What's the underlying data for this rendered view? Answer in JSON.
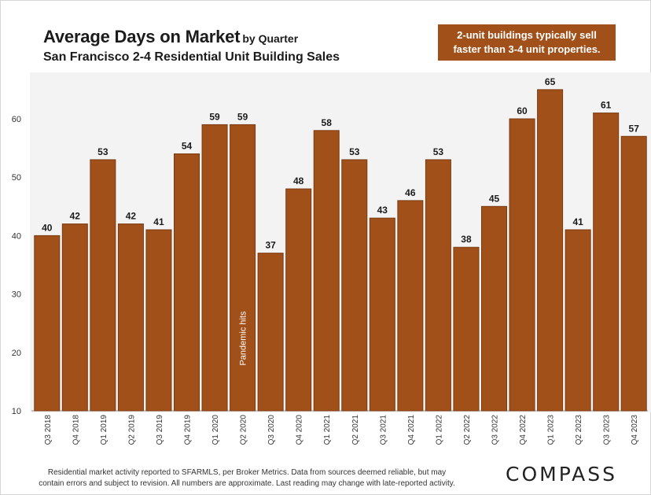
{
  "title": {
    "main": "Average Days on Market",
    "suffix": "by Quarter",
    "subtitle": "San Francisco 2-4 Residential Unit Building Sales"
  },
  "callout": "2-unit buildings typically sell\nfaster than 3-4 unit properties.",
  "footer": "Residential market activity reported to SFARMLS, per Broker Metrics. Data from sources deemed reliable, but may\ncontain errors and subject to revision. All numbers are approximate. Last reading may change with late-reported activity.",
  "logo": "COMPASS",
  "colors": {
    "bar": "#a2501a",
    "bar_edge": "#7a3a10",
    "label": "#1b1b1b",
    "annotation_text": "#ffffff"
  },
  "chart_data": {
    "type": "bar",
    "title": "Average Days on Market by Quarter",
    "subtitle": "San Francisco 2-4 Residential Unit Building Sales",
    "xlabel": "",
    "ylabel": "",
    "ylim": [
      10,
      68
    ],
    "yticks": [
      10,
      20,
      30,
      40,
      50,
      60
    ],
    "grid": false,
    "categories": [
      "Q3 2018",
      "Q4 2018",
      "Q1 2019",
      "Q2 2019",
      "Q3 2019",
      "Q4 2019",
      "Q1 2020",
      "Q2 2020",
      "Q3 2020",
      "Q4 2020",
      "Q1 2021",
      "Q2 2021",
      "Q3 2021",
      "Q4 2021",
      "Q1 2022",
      "Q2 2022",
      "Q3 2022",
      "Q4 2022",
      "Q1 2023",
      "Q2 2023",
      "Q3 2023",
      "Q4 2023"
    ],
    "values": [
      40,
      42,
      53,
      42,
      41,
      54,
      59,
      59,
      37,
      48,
      58,
      53,
      43,
      46,
      53,
      38,
      45,
      60,
      65,
      41,
      61,
      57
    ],
    "annotations": [
      {
        "category": "Q2 2020",
        "text": "Pandemic hits"
      }
    ]
  }
}
